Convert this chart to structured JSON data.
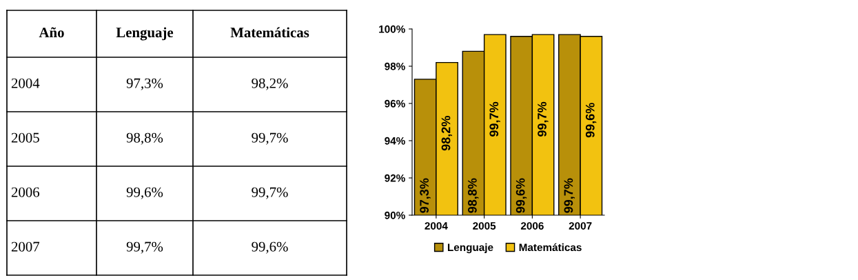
{
  "chart_data": {
    "type": "bar",
    "categories": [
      "2004",
      "2005",
      "2006",
      "2007"
    ],
    "series": [
      {
        "name": "Lenguaje",
        "color": "#b8900a",
        "values": [
          97.3,
          98.8,
          99.6,
          99.7
        ],
        "value_labels": [
          "97,3%",
          "98,8%",
          "99,6%",
          "99,7%"
        ]
      },
      {
        "name": "Matemáticas",
        "color": "#f2c210",
        "values": [
          98.2,
          99.7,
          99.7,
          99.6
        ],
        "value_labels": [
          "98,2%",
          "99,7%",
          "99,7%",
          "99,6%"
        ]
      }
    ],
    "ylim": [
      90,
      100
    ],
    "yticks": [
      {
        "value": 90,
        "label": "90%"
      },
      {
        "value": 92,
        "label": "92%"
      },
      {
        "value": 94,
        "label": "94%"
      },
      {
        "value": 96,
        "label": "96%"
      },
      {
        "value": 98,
        "label": "98%"
      },
      {
        "value": 100,
        "label": "100%"
      }
    ],
    "annotations": [
      "Año"
    ],
    "legend": "bottom",
    "grid": false
  }
}
